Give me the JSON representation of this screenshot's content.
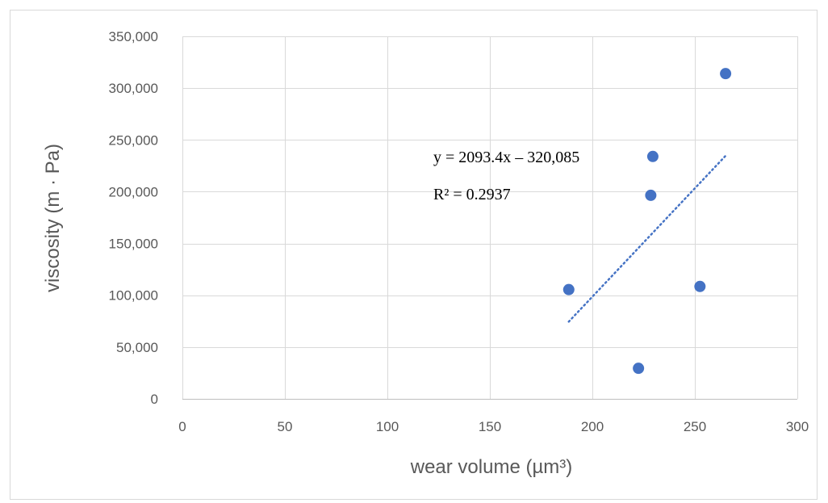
{
  "chart_data": {
    "type": "scatter",
    "xlabel": "wear volume (µm³)",
    "ylabel": "viscosity (m · Pa)",
    "xlim": [
      0,
      300
    ],
    "ylim": [
      0,
      350000
    ],
    "x_ticks": [
      0,
      50,
      100,
      150,
      200,
      250,
      300
    ],
    "y_ticks": [
      0,
      50000,
      100000,
      150000,
      200000,
      250000,
      300000,
      350000
    ],
    "x_tick_labels": [
      "0",
      "50",
      "100",
      "150",
      "200",
      "250",
      "300"
    ],
    "y_tick_labels": [
      "0",
      "50,000",
      "100,000",
      "150,000",
      "200,000",
      "250,000",
      "300,000",
      "350,000"
    ],
    "grid": true,
    "series": [
      {
        "points": [
          {
            "x": 188.5,
            "y": 105500
          },
          {
            "x": 222.5,
            "y": 29500
          },
          {
            "x": 228.5,
            "y": 196500
          },
          {
            "x": 229.5,
            "y": 234000
          },
          {
            "x": 252.5,
            "y": 108500
          },
          {
            "x": 265,
            "y": 314000
          }
        ],
        "color": "#4472C4"
      }
    ],
    "trendline": {
      "type": "linear",
      "slope": 2093.4,
      "intercept": -320085,
      "x_range": [
        188.5,
        265
      ],
      "color": "#4472C4",
      "equation_label": "y = 2093.4x – 320,085",
      "r2_label": "R² = 0.2937"
    }
  }
}
